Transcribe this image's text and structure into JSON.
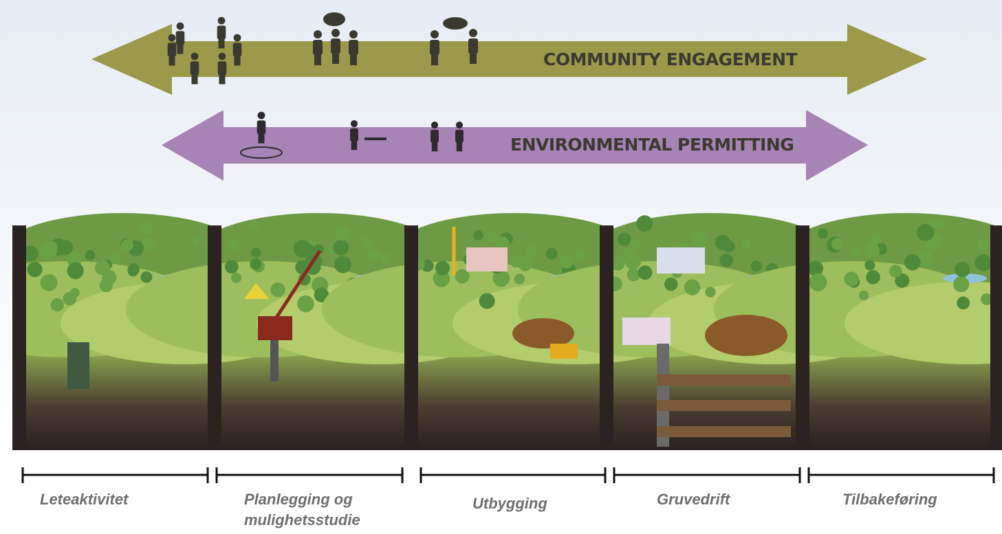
{
  "arrows": [
    "COMMUNITY ENGAGEMENT",
    "ENVIRONMENTAL PERMITTING"
  ],
  "stages": [
    "Leteaktivitet",
    "Planlegging og mulighetsstudie",
    "Utbygging",
    "Gruvedrift",
    "Tilbakeføring"
  ]
}
